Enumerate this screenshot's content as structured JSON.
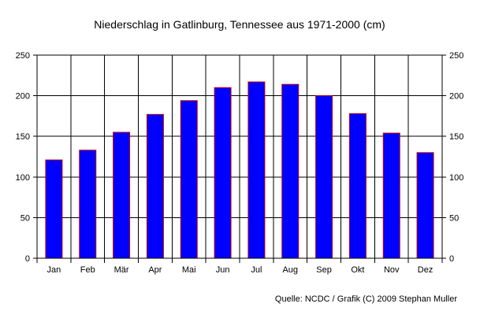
{
  "chart_data": {
    "type": "bar",
    "title": "Niederschlag in Gatlinburg, Tennessee aus 1971-2000 (cm)",
    "categories": [
      "Jan",
      "Feb",
      "Mär",
      "Apr",
      "Mai",
      "Jun",
      "Jul",
      "Aug",
      "Sep",
      "Okt",
      "Nov",
      "Dez"
    ],
    "values": [
      121,
      133,
      155,
      177,
      194,
      210,
      217,
      214,
      200,
      178,
      154,
      130
    ],
    "xlabel": "",
    "ylabel": "",
    "ylim": [
      0,
      250
    ],
    "yticks": [
      "0",
      "50",
      "100",
      "150",
      "200",
      "250"
    ],
    "grid": true,
    "secondary_y_axis": true,
    "colors": {
      "bar_fill": "#0000ff",
      "bar_stroke": "#c00000",
      "grid": "#000000"
    }
  },
  "footer": {
    "source": "Quelle: NCDC / Grafik (C) 2009 Stephan Muller"
  }
}
